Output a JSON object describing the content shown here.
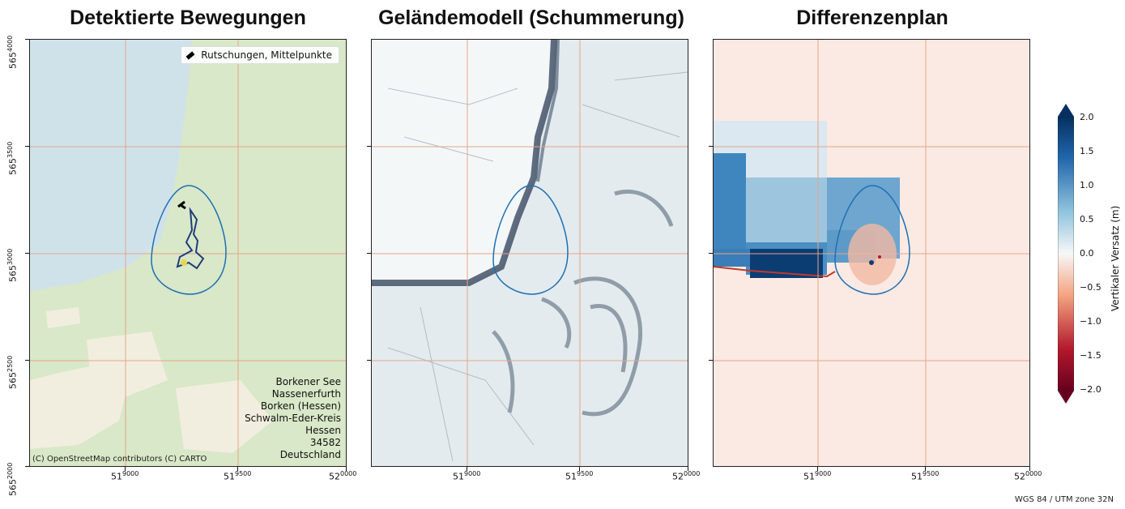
{
  "panels": [
    {
      "title": "Detektierte Bewegungen"
    },
    {
      "title": "Geländemodell (Schummerung)"
    },
    {
      "title": "Differenzenplan"
    }
  ],
  "y_ticks": [
    {
      "base": "565",
      "exp": "4000"
    },
    {
      "base": "565",
      "exp": "3500"
    },
    {
      "base": "565",
      "exp": "3000"
    },
    {
      "base": "565",
      "exp": "2500"
    },
    {
      "base": "565",
      "exp": "2000"
    }
  ],
  "x_ticks": [
    {
      "base": "51",
      "exp": "9000"
    },
    {
      "base": "51",
      "exp": "9500"
    },
    {
      "base": "52",
      "exp": "0000"
    }
  ],
  "legend": {
    "label": "Rutschungen, Mittelpunkte"
  },
  "location": [
    "Borkener See",
    "Nassenerfurth",
    "Borken (Hessen)",
    "Schwalm-Eder-Kreis",
    "Hessen",
    "34582",
    "Deutschland"
  ],
  "attribution": "(C) OpenStreetMap contributors (C) CARTO",
  "colorbar": {
    "label": "Vertikaler Versatz (m)",
    "ticks": [
      "2.0",
      "1.5",
      "1.0",
      "0.5",
      "0.0",
      "−0.5",
      "−1.0",
      "−1.5",
      "−2.0"
    ],
    "min": -2.0,
    "max": 2.0,
    "colors": {
      "high": "#053061",
      "mid": "#f7f7f7",
      "low": "#67001f"
    }
  },
  "crs": "WGS 84 / UTM zone 32N",
  "colors": {
    "water": "#cfe2ea",
    "land": "#d8e8c8",
    "grid": "#e6a58a",
    "outline": "#1f6fb4"
  }
}
